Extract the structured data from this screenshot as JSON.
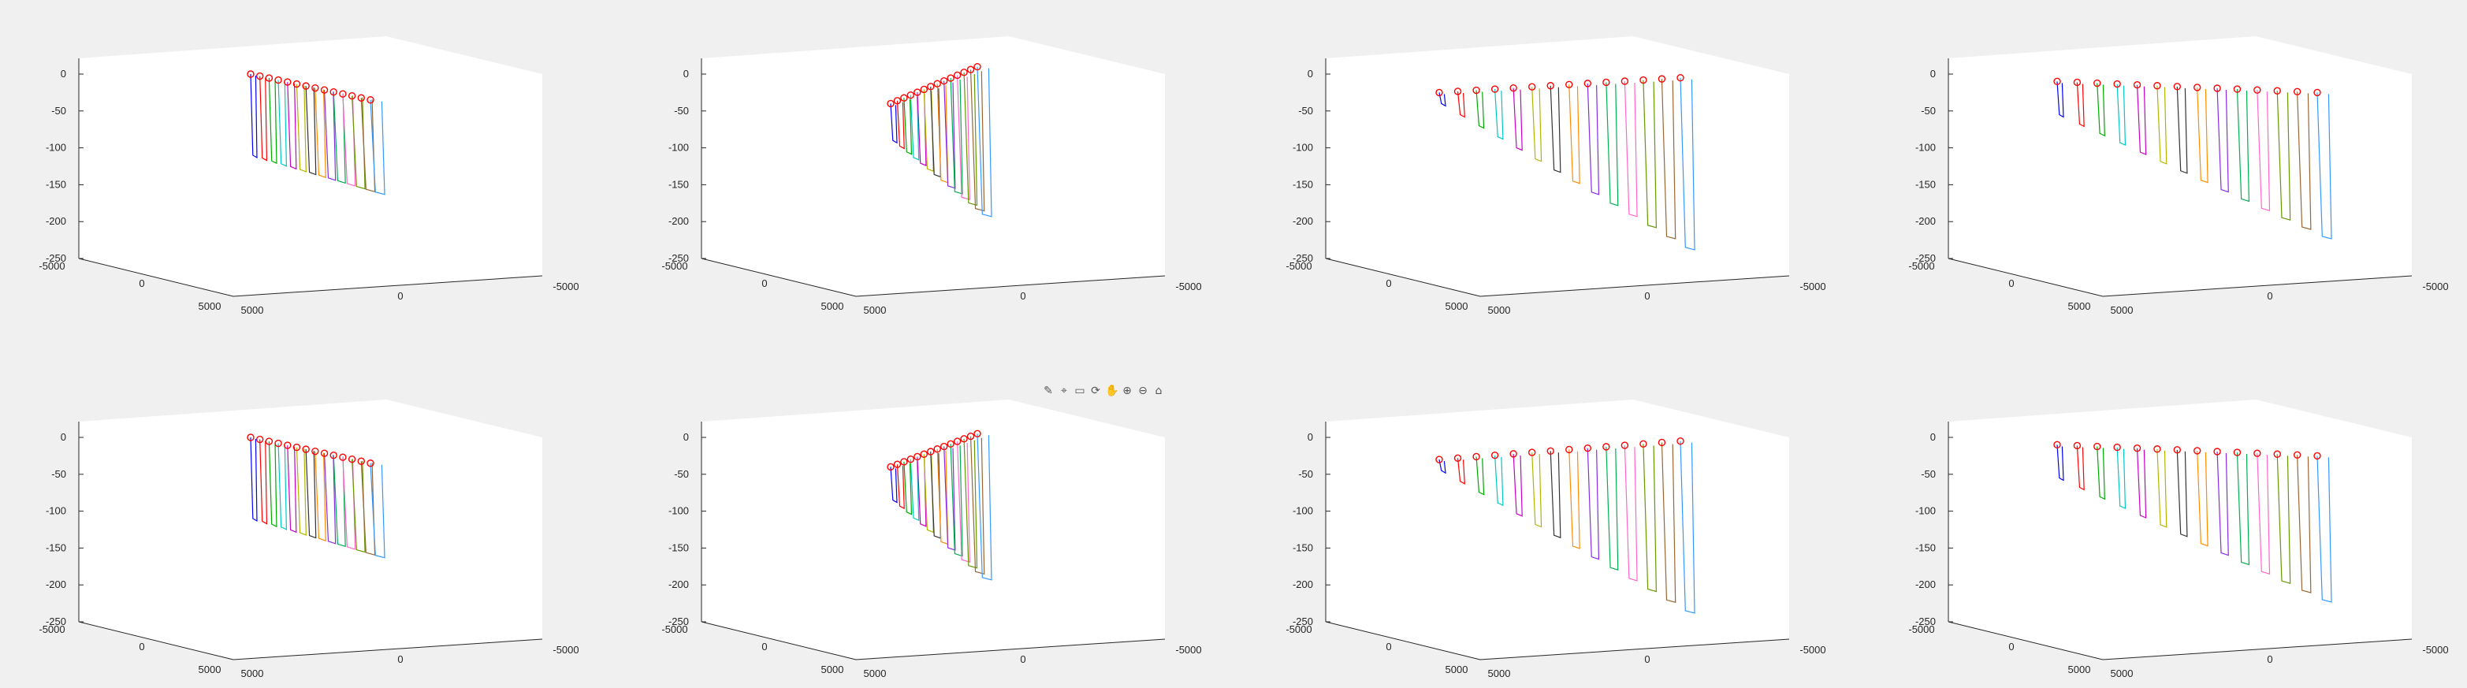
{
  "toolbar": {
    "icons": [
      "brush-icon",
      "datatip-icon",
      "restore-view-icon",
      "rotate-icon",
      "pan-icon",
      "zoom-in-icon",
      "zoom-out-icon",
      "home-icon"
    ],
    "glyphs": [
      "✎",
      "⌖",
      "▭",
      "⟳",
      "✋",
      "⊕",
      "⊖",
      "⌂"
    ]
  },
  "colors": {
    "marker": "#ff0000",
    "palette": [
      "#0000ff",
      "#ff0000",
      "#00aa00",
      "#00c8c8",
      "#c800c8",
      "#b4b400",
      "#333333",
      "#ff8c00",
      "#8a2be2",
      "#00b050",
      "#ff66cc",
      "#669900",
      "#996633",
      "#3399ff"
    ]
  },
  "chart_data": [
    {
      "id": "subplot-1",
      "type": "line3d",
      "n": 14,
      "z_top": [
        0,
        -35
      ],
      "z_bottom": [
        -110,
        -160
      ],
      "xticks": [
        "-5000",
        "0",
        "5000"
      ],
      "yticks": [
        "5000",
        "0",
        "-5000"
      ],
      "zticks": [
        "0",
        "-50",
        "-100",
        "-150",
        "-200",
        "-250"
      ],
      "zlim": [
        -250,
        0
      ]
    },
    {
      "id": "subplot-2",
      "type": "line3d",
      "n": 14,
      "z_top": [
        -40,
        10
      ],
      "z_bottom": [
        -90,
        -190
      ],
      "xticks": [
        "-5000",
        "0",
        "5000"
      ],
      "yticks": [
        "5000",
        "0",
        "-5000"
      ],
      "zticks": [
        "0",
        "-50",
        "-100",
        "-150",
        "-200",
        "-250"
      ],
      "zlim": [
        -250,
        0
      ]
    },
    {
      "id": "subplot-3",
      "type": "line3d",
      "n": 14,
      "z_top": [
        -25,
        -5
      ],
      "z_bottom": [
        -40,
        -235
      ],
      "xticks": [
        "-5000",
        "0",
        "5000"
      ],
      "yticks": [
        "5000",
        "0",
        "-5000"
      ],
      "zticks": [
        "0",
        "-50",
        "-100",
        "-150",
        "-200",
        "-250"
      ],
      "zlim": [
        -250,
        0
      ]
    },
    {
      "id": "subplot-4",
      "type": "line3d",
      "n": 14,
      "z_top": [
        -10,
        -25
      ],
      "z_bottom": [
        -55,
        -220
      ],
      "xticks": [
        "-5000",
        "0",
        "5000"
      ],
      "yticks": [
        "5000",
        "0",
        "-5000"
      ],
      "zticks": [
        "0",
        "-50",
        "-100",
        "-150",
        "-200",
        "-250"
      ],
      "zlim": [
        -250,
        0
      ]
    },
    {
      "id": "subplot-5",
      "type": "line3d",
      "n": 14,
      "z_top": [
        0,
        -35
      ],
      "z_bottom": [
        -110,
        -160
      ],
      "xticks": [
        "-5000",
        "0",
        "5000"
      ],
      "yticks": [
        "5000",
        "0",
        "-5000"
      ],
      "zticks": [
        "0",
        "-50",
        "-100",
        "-150",
        "-200",
        "-250"
      ],
      "zlim": [
        -250,
        0
      ]
    },
    {
      "id": "subplot-6",
      "type": "line3d",
      "n": 14,
      "z_top": [
        -40,
        5
      ],
      "z_bottom": [
        -85,
        -190
      ],
      "xticks": [
        "-5000",
        "0",
        "5000"
      ],
      "yticks": [
        "5000",
        "0",
        "-5000"
      ],
      "zticks": [
        "0",
        "-50",
        "-100",
        "-150",
        "-200",
        "-250"
      ],
      "zlim": [
        -250,
        0
      ]
    },
    {
      "id": "subplot-7",
      "type": "line3d",
      "n": 14,
      "z_top": [
        -30,
        -5
      ],
      "z_bottom": [
        -45,
        -235
      ],
      "xticks": [
        "-5000",
        "0",
        "5000"
      ],
      "yticks": [
        "5000",
        "0",
        "-5000"
      ],
      "zticks": [
        "0",
        "-50",
        "-100",
        "-150",
        "-200",
        "-250"
      ],
      "zlim": [
        -250,
        0
      ]
    },
    {
      "id": "subplot-8",
      "type": "line3d",
      "n": 14,
      "z_top": [
        -10,
        -25
      ],
      "z_bottom": [
        -55,
        -220
      ],
      "xticks": [
        "-5000",
        "0",
        "5000"
      ],
      "yticks": [
        "5000",
        "0",
        "-5000"
      ],
      "zticks": [
        "0",
        "-50",
        "-100",
        "-150",
        "-200",
        "-250"
      ],
      "zlim": [
        -250,
        0
      ]
    }
  ]
}
